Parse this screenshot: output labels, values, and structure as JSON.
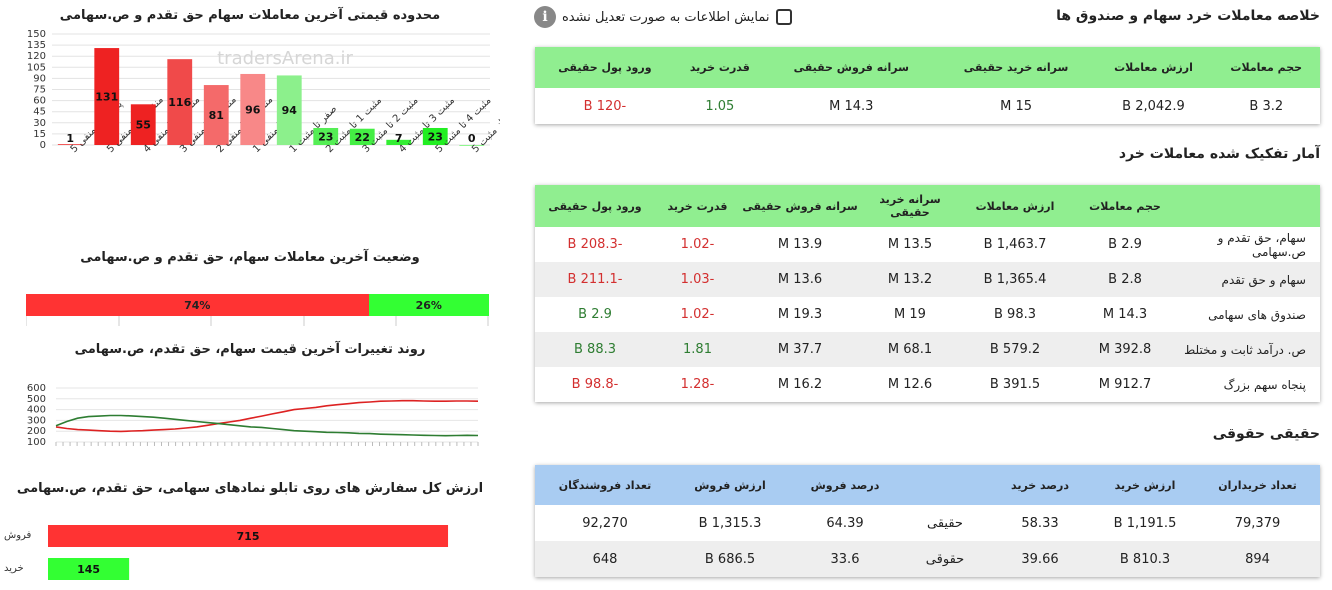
{
  "colors": {
    "green_header": "#90ee90",
    "blue_header": "#a9ccf2",
    "negative": "#d32f2f",
    "positive": "#2e7d32",
    "sell_bar": "#ff3333",
    "buy_bar": "#33ff33"
  },
  "header": {
    "title": "خلاصه معاملات خرد سهام و صندوق ها",
    "checkbox_label": "نمایش اطلاعات به صورت تعدیل نشده",
    "info_icon": "info-icon"
  },
  "summary": {
    "columns": [
      "حجم معاملات",
      "ارزش معاملات",
      "سرانه خرید حقیقی",
      "سرانه فروش حقیقی",
      "قدرت خرید",
      "ورود پول حقیقی"
    ],
    "row": [
      "3.2 B",
      "2,042.9 B",
      "15 M",
      "14.3 M",
      "1.05",
      "-120 B"
    ]
  },
  "breakdown": {
    "title": "آمار تفکیک شده معاملات خرد",
    "columns": [
      "",
      "حجم معاملات",
      "ارزش معاملات",
      "سرانه خرید حقیقی",
      "سرانه فروش حقیقی",
      "قدرت خرید",
      "ورود پول حقیقی"
    ],
    "rows": [
      [
        "سهام، حق تقدم و ص.سهامی",
        "2.9 B",
        "1,463.7 B",
        "13.5 M",
        "13.9 M",
        "-1.02",
        "-208.3 B"
      ],
      [
        "سهام و حق تقدم",
        "2.8 B",
        "1,365.4 B",
        "13.2 M",
        "13.6 M",
        "-1.03",
        "-211.1 B"
      ],
      [
        "صندوق های سهامی",
        "14.3 M",
        "98.3 B",
        "19 M",
        "19.3 M",
        "-1.02",
        "2.9 B"
      ],
      [
        "ص. درآمد ثابت و مختلط",
        "392.8 M",
        "579.2 B",
        "68.1 M",
        "37.7 M",
        "1.81",
        "88.3 B"
      ],
      [
        "پنجاه سهم بزرگ",
        "912.7 M",
        "391.5 B",
        "12.6 M",
        "16.2 M",
        "-1.28",
        "-98.8 B"
      ]
    ]
  },
  "legal": {
    "title": "حقیقی حقوقی",
    "columns": [
      "تعداد خریداران",
      "ارزش خرید",
      "درصد خرید",
      "",
      "درصد فروش",
      "ارزش فروش",
      "تعداد فروشندگان"
    ],
    "rows": [
      [
        "79,379",
        "1,191.5 B",
        "58.33",
        "حقیقی",
        "64.39",
        "1,315.3 B",
        "92,270"
      ],
      [
        "894",
        "810.3 B",
        "39.66",
        "حقوقی",
        "33.6",
        "686.5 B",
        "648"
      ]
    ]
  },
  "chart_data": [
    {
      "type": "bar",
      "title": "محدوده قیمتی آخرین معاملات سهام حق تقدم و ص.سهامی",
      "watermark": "tradersArena.ir",
      "categories": [
        "پایینتر از منفی 5",
        "منفی 4 تا منفی 5",
        "منفی 3 تا منفی 4",
        "منفی 2 تا منفی 3",
        "منفی 1 تا منفی 2",
        "صفر تا منفی 1",
        "صفر تا مثبت 1",
        "مثبت 1 تا مثبت 2",
        "مثبت 2 تا مثبت 3",
        "مثبت 3 تا مثبت 4",
        "مثبت 4 تا مثبت 5",
        "بالاتر از مثبت 5"
      ],
      "values": [
        1,
        131,
        55,
        116,
        81,
        96,
        94,
        23,
        22,
        7,
        23,
        0
      ],
      "colors": [
        "#ee2222",
        "#ee2222",
        "#ee2222",
        "#f04a4a",
        "#f46a6a",
        "#f88888",
        "#8cf08c",
        "#55ee55",
        "#44ee44",
        "#33ee33",
        "#22ee22",
        "#22ee22"
      ],
      "yticks": [
        "0",
        "15",
        "30",
        "45",
        "60",
        "75",
        "90",
        "105",
        "120",
        "135",
        "150"
      ],
      "ylim": [
        0,
        150
      ]
    },
    {
      "type": "bar",
      "title": "وضعیت آخرین معاملات سهام، حق تقدم و ص.سهامی",
      "series": [
        {
          "name": "sell",
          "value": 74,
          "label": "74%"
        },
        {
          "name": "buy",
          "value": 26,
          "label": "26%"
        }
      ]
    },
    {
      "type": "line",
      "title": "روند تغییرات آخرین قیمت سهام، حق تقدم، ص.سهامی",
      "yticks": [
        "100",
        "200",
        "300",
        "400",
        "500",
        "600"
      ],
      "ylim": [
        100,
        600
      ],
      "series": [
        {
          "color": "#dd2222",
          "values": [
            240,
            225,
            215,
            210,
            205,
            200,
            198,
            202,
            205,
            210,
            215,
            220,
            230,
            240,
            255,
            270,
            285,
            300,
            320,
            340,
            360,
            380,
            400,
            410,
            420,
            435,
            445,
            455,
            465,
            470,
            478,
            480,
            482,
            482,
            480,
            478,
            478,
            480,
            480,
            478
          ]
        },
        {
          "color": "#2e7d32",
          "values": [
            250,
            290,
            320,
            335,
            340,
            345,
            345,
            342,
            335,
            330,
            320,
            310,
            300,
            290,
            280,
            270,
            260,
            250,
            240,
            235,
            225,
            215,
            205,
            200,
            195,
            190,
            188,
            185,
            180,
            178,
            172,
            170,
            168,
            165,
            162,
            160,
            158,
            160,
            162,
            160
          ]
        }
      ]
    },
    {
      "type": "bar",
      "title": "ارزش کل سفارش های روی تابلو نمادهای سهامی، حق تقدم، ص.سهامی",
      "categories": [
        "فروش",
        "خرید"
      ],
      "values": [
        715,
        145
      ]
    }
  ]
}
